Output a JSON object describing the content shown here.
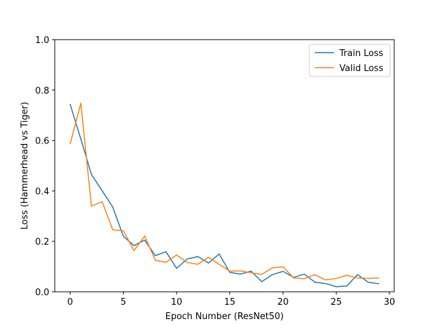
{
  "chart_data": {
    "type": "line",
    "title": "",
    "xlabel": "Epoch Number (ResNet50)",
    "ylabel": "Loss (Hammerhead vs Tiger)",
    "xlim": [
      -1.45,
      30.45
    ],
    "ylim": [
      0,
      1.0
    ],
    "xticks": [
      0,
      5,
      10,
      15,
      20,
      25,
      30
    ],
    "yticks": [
      0.0,
      0.2,
      0.4,
      0.6,
      0.8,
      1.0
    ],
    "xtick_labels": [
      "0",
      "5",
      "10",
      "15",
      "20",
      "25",
      "30"
    ],
    "ytick_labels": [
      "0.0",
      "0.2",
      "0.4",
      "0.6",
      "0.8",
      "1.0"
    ],
    "grid": false,
    "legend_position": "top-right",
    "x": [
      0,
      1,
      2,
      3,
      4,
      5,
      6,
      7,
      8,
      9,
      10,
      11,
      12,
      13,
      14,
      15,
      16,
      17,
      18,
      19,
      20,
      21,
      22,
      23,
      24,
      25,
      26,
      27,
      28,
      29
    ],
    "series": [
      {
        "name": "Train Loss",
        "color": "#1f77b4",
        "values": [
          0.743,
          0.606,
          0.465,
          0.401,
          0.336,
          0.22,
          0.183,
          0.205,
          0.143,
          0.159,
          0.093,
          0.13,
          0.14,
          0.114,
          0.15,
          0.077,
          0.07,
          0.082,
          0.04,
          0.068,
          0.081,
          0.057,
          0.07,
          0.038,
          0.033,
          0.02,
          0.023,
          0.068,
          0.038,
          0.032
        ]
      },
      {
        "name": "Valid Loss",
        "color": "#ff7f0e",
        "values": [
          0.587,
          0.748,
          0.34,
          0.357,
          0.246,
          0.242,
          0.163,
          0.221,
          0.125,
          0.117,
          0.146,
          0.116,
          0.109,
          0.137,
          0.109,
          0.082,
          0.083,
          0.075,
          0.069,
          0.095,
          0.099,
          0.055,
          0.052,
          0.068,
          0.047,
          0.053,
          0.065,
          0.055,
          0.053,
          0.055
        ]
      }
    ]
  }
}
